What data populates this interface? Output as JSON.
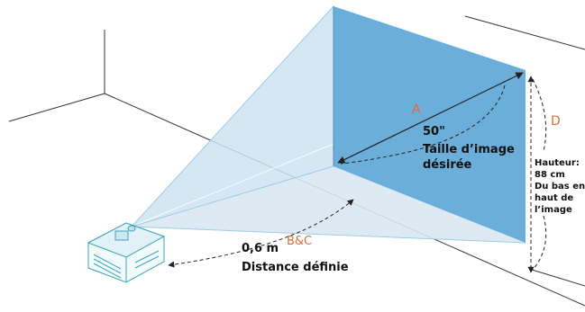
{
  "labels": {
    "a": "A",
    "d": "D",
    "bc": "B&C",
    "size": "50\"",
    "size_caption_line1": "Taille d’image",
    "size_caption_line2": "désirée",
    "distance": "0,6 m",
    "distance_caption": "Distance définie",
    "height_line1": "Hauteur:",
    "height_line2": "88 cm",
    "height_line3": "Du bas en",
    "height_line4": "haut de",
    "height_line5": "l’image"
  },
  "colors": {
    "screen": "#6aaed9",
    "beam": "#cfe3f2",
    "beam_edge": "#9ccbe8",
    "letter_label": "#d9703a",
    "line": "#222222",
    "projector": "#e8f4f9",
    "projector_edge": "#3aa6b8"
  },
  "icons": {
    "projector": "projector-icon"
  }
}
